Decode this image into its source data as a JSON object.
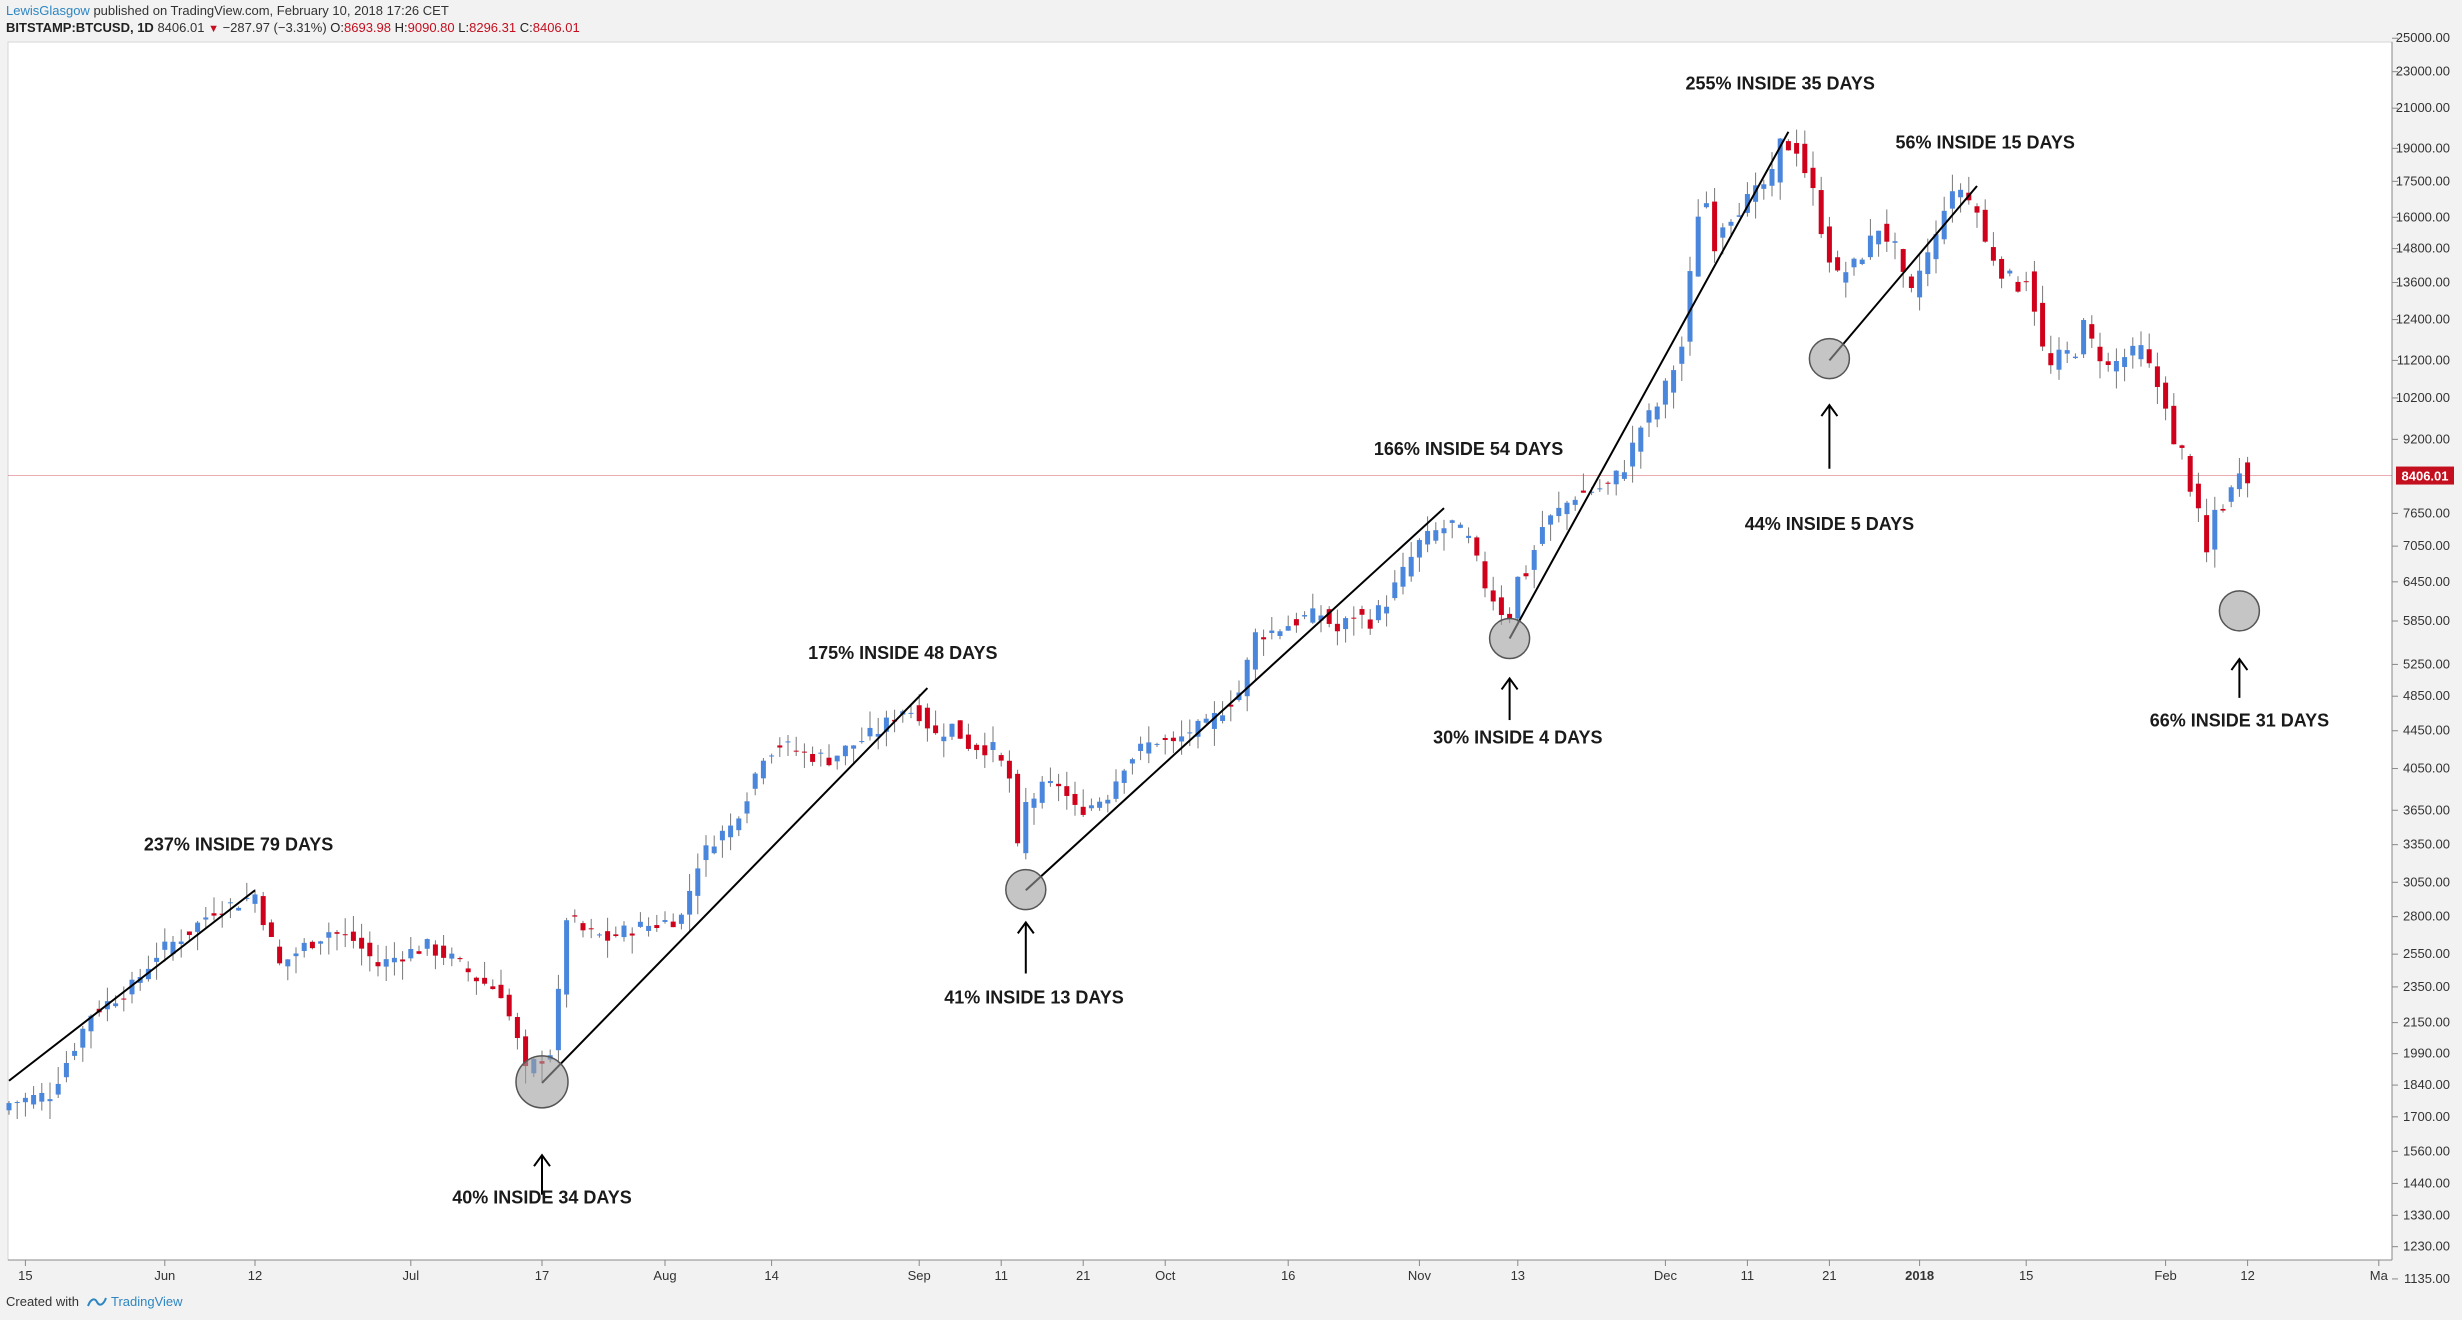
{
  "header": {
    "author": "LewisGlasgow",
    "published_text": "published on TradingView.com, February 10, 2018 17:26 CET",
    "symbol": "BITSTAMP:BTCUSD, 1D",
    "last": "8406.01",
    "change": "−287.97 (−3.31%)",
    "o_label": "O:",
    "o_value": "8693.98",
    "h_label": "H:",
    "h_value": "9090.80",
    "l_label": "L:",
    "l_value": "8296.31",
    "c_label": "C:",
    "c_value": "8406.01"
  },
  "footer": {
    "created_with": "Created with",
    "brand": "TradingView"
  },
  "chart_data": {
    "type": "candlestick",
    "title": "BITSTAMP:BTCUSD, 1D",
    "y_scale": "log",
    "ylim": [
      1040,
      27500
    ],
    "xlim_days": [
      0,
      303
    ],
    "y_ticks": [
      1135,
      1230,
      1330,
      1440,
      1560,
      1700,
      1840,
      1990,
      2150,
      2350,
      2550,
      2800,
      3050,
      3350,
      3650,
      4050,
      4450,
      4850,
      5250,
      5850,
      6450,
      7050,
      7650,
      9200,
      10200,
      11200,
      12400,
      13600,
      14800,
      16000,
      17500,
      19000,
      21000,
      23000,
      25000
    ],
    "y_tick_labels": [
      "1135.00",
      "1230.00",
      "1330.00",
      "1440.00",
      "1560.00",
      "1700.00",
      "1840.00",
      "1990.00",
      "2150.00",
      "2350.00",
      "2550.00",
      "2800.00",
      "3050.00",
      "3350.00",
      "3650.00",
      "4050.00",
      "4450.00",
      "4850.00",
      "5250.00",
      "5850.00",
      "6450.00",
      "7050.00",
      "7650.00",
      "9200.00",
      "10200.00",
      "11200.00",
      "12400.00",
      "13600.00",
      "14800.00",
      "16000.00",
      "17500.00",
      "19000.00",
      "21000.00",
      "23000.00",
      "25000.00"
    ],
    "x_ticks": [
      {
        "day": 2,
        "label": "15"
      },
      {
        "day": 19,
        "label": "Jun"
      },
      {
        "day": 30,
        "label": "12"
      },
      {
        "day": 49,
        "label": "Jul"
      },
      {
        "day": 65,
        "label": "17"
      },
      {
        "day": 80,
        "label": "Aug"
      },
      {
        "day": 93,
        "label": "14"
      },
      {
        "day": 111,
        "label": "Sep"
      },
      {
        "day": 121,
        "label": "11"
      },
      {
        "day": 131,
        "label": "21"
      },
      {
        "day": 141,
        "label": "Oct"
      },
      {
        "day": 156,
        "label": "16"
      },
      {
        "day": 172,
        "label": "Nov"
      },
      {
        "day": 184,
        "label": "13"
      },
      {
        "day": 202,
        "label": "Dec"
      },
      {
        "day": 212,
        "label": "11"
      },
      {
        "day": 222,
        "label": "21"
      },
      {
        "day": 233,
        "label": "2018"
      },
      {
        "day": 246,
        "label": "15"
      },
      {
        "day": 263,
        "label": "Feb"
      },
      {
        "day": 273,
        "label": "12"
      },
      {
        "day": 289,
        "label": "Ma"
      }
    ],
    "last_price": 8406.01,
    "last_price_label": "8406.01",
    "close_anchors": [
      [
        0,
        1760
      ],
      [
        5,
        1800
      ],
      [
        10,
        2200
      ],
      [
        15,
        2350
      ],
      [
        18,
        2550
      ],
      [
        22,
        2700
      ],
      [
        25,
        2850
      ],
      [
        28,
        2900
      ],
      [
        30,
        2960
      ],
      [
        33,
        2480
      ],
      [
        36,
        2600
      ],
      [
        39,
        2700
      ],
      [
        42,
        2640
      ],
      [
        45,
        2480
      ],
      [
        48,
        2550
      ],
      [
        51,
        2600
      ],
      [
        54,
        2520
      ],
      [
        57,
        2400
      ],
      [
        60,
        2320
      ],
      [
        62,
        2050
      ],
      [
        63,
        1900
      ],
      [
        64,
        1940
      ],
      [
        66,
        2000
      ],
      [
        67,
        2300
      ],
      [
        68,
        2800
      ],
      [
        70,
        2700
      ],
      [
        73,
        2650
      ],
      [
        76,
        2720
      ],
      [
        79,
        2750
      ],
      [
        82,
        2800
      ],
      [
        84,
        3200
      ],
      [
        86,
        3400
      ],
      [
        88,
        3500
      ],
      [
        90,
        3800
      ],
      [
        92,
        4200
      ],
      [
        94,
        4300
      ],
      [
        97,
        4200
      ],
      [
        100,
        4150
      ],
      [
        103,
        4300
      ],
      [
        106,
        4450
      ],
      [
        109,
        4700
      ],
      [
        111,
        4650
      ],
      [
        113,
        4400
      ],
      [
        115,
        4500
      ],
      [
        117,
        4300
      ],
      [
        120,
        4250
      ],
      [
        122,
        3950
      ],
      [
        123,
        3300
      ],
      [
        124,
        3700
      ],
      [
        126,
        3850
      ],
      [
        128,
        3900
      ],
      [
        130,
        3650
      ],
      [
        132,
        3700
      ],
      [
        134,
        3800
      ],
      [
        136,
        4100
      ],
      [
        138,
        4250
      ],
      [
        140,
        4350
      ],
      [
        142,
        4300
      ],
      [
        144,
        4450
      ],
      [
        146,
        4500
      ],
      [
        148,
        4700
      ],
      [
        150,
        4900
      ],
      [
        152,
        5650
      ],
      [
        154,
        5700
      ],
      [
        156,
        5800
      ],
      [
        158,
        5900
      ],
      [
        160,
        5950
      ],
      [
        162,
        5700
      ],
      [
        164,
        5950
      ],
      [
        166,
        5850
      ],
      [
        168,
        6150
      ],
      [
        170,
        6600
      ],
      [
        172,
        7100
      ],
      [
        174,
        7300
      ],
      [
        176,
        7450
      ],
      [
        178,
        7150
      ],
      [
        180,
        6400
      ],
      [
        182,
        6000
      ],
      [
        183,
        5950
      ],
      [
        184,
        6500
      ],
      [
        185,
        6600
      ],
      [
        187,
        7400
      ],
      [
        189,
        7700
      ],
      [
        191,
        8000
      ],
      [
        193,
        8100
      ],
      [
        195,
        8200
      ],
      [
        197,
        8600
      ],
      [
        199,
        9500
      ],
      [
        201,
        10000
      ],
      [
        203,
        11000
      ],
      [
        204,
        11600
      ],
      [
        205,
        13800
      ],
      [
        206,
        16200
      ],
      [
        207,
        16600
      ],
      [
        208,
        15000
      ],
      [
        209,
        15800
      ],
      [
        211,
        16400
      ],
      [
        213,
        17000
      ],
      [
        215,
        17700
      ],
      [
        216,
        19200
      ],
      [
        218,
        19000
      ],
      [
        220,
        17000
      ],
      [
        221,
        15600
      ],
      [
        222,
        14500
      ],
      [
        223,
        13800
      ],
      [
        224,
        14000
      ],
      [
        225,
        14200
      ],
      [
        226,
        14600
      ],
      [
        228,
        15600
      ],
      [
        230,
        14800
      ],
      [
        231,
        13700
      ],
      [
        232,
        13200
      ],
      [
        233,
        14000
      ],
      [
        235,
        15200
      ],
      [
        236,
        16500
      ],
      [
        237,
        16800
      ],
      [
        238,
        17200
      ],
      [
        240,
        16200
      ],
      [
        241,
        15000
      ],
      [
        243,
        14000
      ],
      [
        245,
        13500
      ],
      [
        246,
        13800
      ],
      [
        247,
        12800
      ],
      [
        248,
        11500
      ],
      [
        249,
        11000
      ],
      [
        250,
        11300
      ],
      [
        252,
        11500
      ],
      [
        253,
        12200
      ],
      [
        254,
        11700
      ],
      [
        256,
        11000
      ],
      [
        258,
        11300
      ],
      [
        260,
        11500
      ],
      [
        262,
        10500
      ],
      [
        263,
        10100
      ],
      [
        264,
        9000
      ],
      [
        265,
        8900
      ],
      [
        266,
        8200
      ],
      [
        267,
        7600
      ],
      [
        268,
        6900
      ],
      [
        269,
        7700
      ],
      [
        270,
        7800
      ],
      [
        271,
        8100
      ],
      [
        272,
        8600
      ],
      [
        273,
        8406
      ]
    ],
    "trend_lines": [
      {
        "from": [
          0,
          1860
        ],
        "to": [
          30,
          2990
        ]
      },
      {
        "from": [
          65,
          1850
        ],
        "to": [
          112,
          4950
        ]
      },
      {
        "from": [
          124,
          2990
        ],
        "to": [
          175,
          7750
        ]
      },
      {
        "from": [
          183,
          5600
        ],
        "to": [
          217,
          19800
        ]
      },
      {
        "from": [
          222,
          11200
        ],
        "to": [
          240,
          17300
        ]
      }
    ],
    "circles": [
      {
        "day": 65,
        "price": 1855,
        "size": "large"
      },
      {
        "day": 124,
        "price": 2995,
        "size": "small"
      },
      {
        "day": 183,
        "price": 5600,
        "size": "small"
      },
      {
        "day": 222,
        "price": 11250,
        "size": "small"
      },
      {
        "day": 272,
        "price": 6000,
        "size": "small"
      }
    ],
    "arrows": [
      {
        "day": 65,
        "from_price": 1545,
        "to_price": 1400
      },
      {
        "day": 124,
        "from_price": 2760,
        "to_price": 2430
      },
      {
        "day": 183,
        "from_price": 5070,
        "to_price": 4570
      },
      {
        "day": 222,
        "from_price": 10020,
        "to_price": 8550
      },
      {
        "day": 272,
        "from_price": 5320,
        "to_price": 4830
      }
    ],
    "annotations": [
      {
        "text": "237% INSIDE 79 DAYS",
        "day": 28,
        "price": 3300
      },
      {
        "text": "40% INSIDE 34 DAYS",
        "day": 65,
        "price": 1370
      },
      {
        "text": "175% INSIDE 48 DAYS",
        "day": 109,
        "price": 5320
      },
      {
        "text": "41% INSIDE 13 DAYS",
        "day": 125,
        "price": 2255
      },
      {
        "text": "166% INSIDE 54 DAYS",
        "day": 178,
        "price": 8850
      },
      {
        "text": "30% INSIDE 4 DAYS",
        "day": 184,
        "price": 4310
      },
      {
        "text": "255% INSIDE 35 DAYS",
        "day": 216,
        "price": 22000
      },
      {
        "text": "44% INSIDE 5 DAYS",
        "day": 222,
        "price": 7340
      },
      {
        "text": "56% INSIDE 15 DAYS",
        "day": 241,
        "price": 19000
      },
      {
        "text": "66% INSIDE 31 DAYS",
        "day": 272,
        "price": 4500
      }
    ],
    "colors": {
      "up": "#4a86dc",
      "down": "#d0021b",
      "wick": "#777777",
      "last_price": "#c40f1f"
    }
  }
}
